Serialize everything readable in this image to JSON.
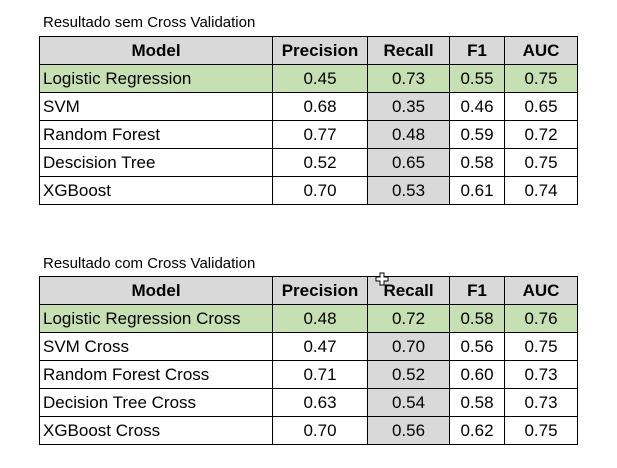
{
  "tables": [
    {
      "caption": "Resultado sem Cross Validation",
      "headers": [
        "Model",
        "Precision",
        "Recall",
        "F1",
        "AUC"
      ],
      "rows": [
        [
          "Logistic Regression",
          "0.45",
          "0.73",
          "0.55",
          "0.75"
        ],
        [
          "SVM",
          "0.68",
          "0.35",
          "0.46",
          "0.65"
        ],
        [
          "Random Forest",
          "0.77",
          "0.48",
          "0.59",
          "0.72"
        ],
        [
          "Descision Tree",
          "0.52",
          "0.65",
          "0.58",
          "0.75"
        ],
        [
          "XGBoost",
          "0.70",
          "0.53",
          "0.61",
          "0.74"
        ]
      ]
    },
    {
      "caption": "Resultado com Cross Validation",
      "headers": [
        "Model",
        "Precision",
        "Recall",
        "F1",
        "AUC"
      ],
      "rows": [
        [
          "Logistic Regression Cross",
          "0.48",
          "0.72",
          "0.58",
          "0.76"
        ],
        [
          "SVM Cross",
          "0.47",
          "0.70",
          "0.56",
          "0.75"
        ],
        [
          "Random Forest Cross",
          "0.71",
          "0.52",
          "0.60",
          "0.73"
        ],
        [
          "Decision Tree Cross",
          "0.63",
          "0.54",
          "0.58",
          "0.73"
        ],
        [
          "XGBoost Cross",
          "0.70",
          "0.56",
          "0.62",
          "0.75"
        ]
      ]
    }
  ],
  "colors": {
    "header_bg": "#d9d9d9",
    "highlight_row": "#c6e0b4",
    "recall_column_bg": "#d9d9d9",
    "border": "#000000"
  },
  "icons": {
    "cursor": "move-cursor-icon"
  }
}
